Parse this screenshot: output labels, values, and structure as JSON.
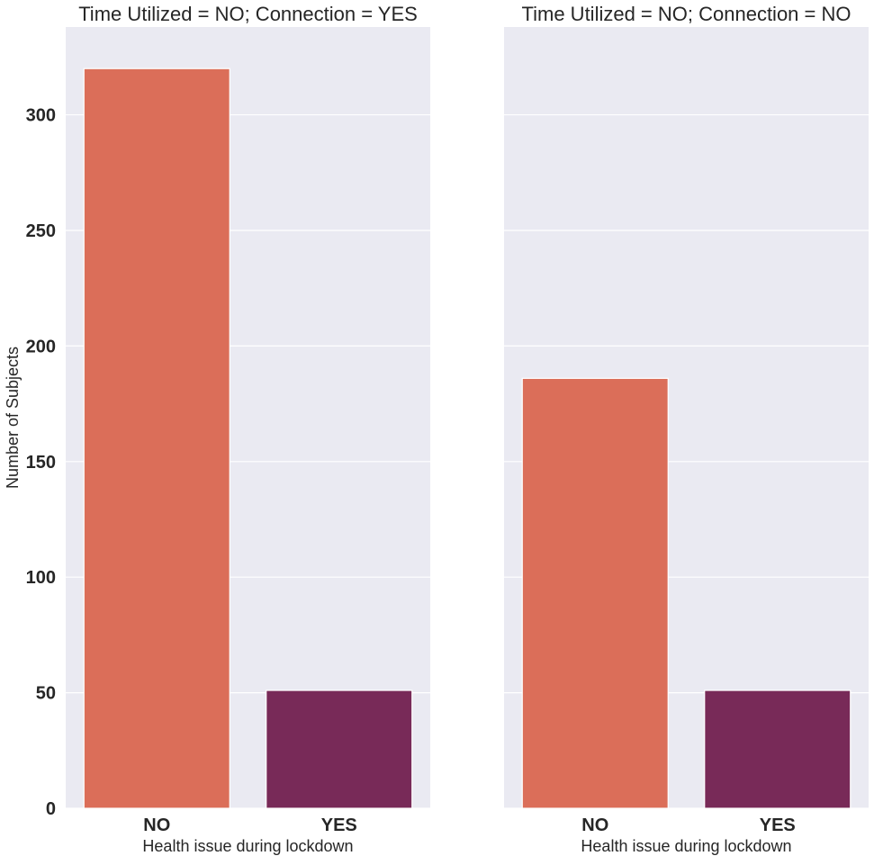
{
  "chart_data": {
    "type": "bar",
    "ylabel": "Number of Subjects",
    "ylim": [
      0,
      338
    ],
    "yticks": [
      0,
      50,
      100,
      150,
      200,
      250,
      300
    ],
    "grid": true,
    "colors": {
      "background": "#eaeaf2",
      "grid": "#ffffff",
      "text": "#262626",
      "NO": "#db6e59",
      "YES": "#782a58"
    },
    "panels": [
      {
        "title": "Time Utilized = NO; Connection = YES",
        "xlabel": "Health issue during lockdown",
        "categories": [
          "NO",
          "YES"
        ],
        "values": [
          320,
          51
        ]
      },
      {
        "title": "Time Utilized = NO; Connection = NO",
        "xlabel": "Health issue during lockdown",
        "categories": [
          "NO",
          "YES"
        ],
        "values": [
          186,
          51
        ]
      }
    ]
  }
}
